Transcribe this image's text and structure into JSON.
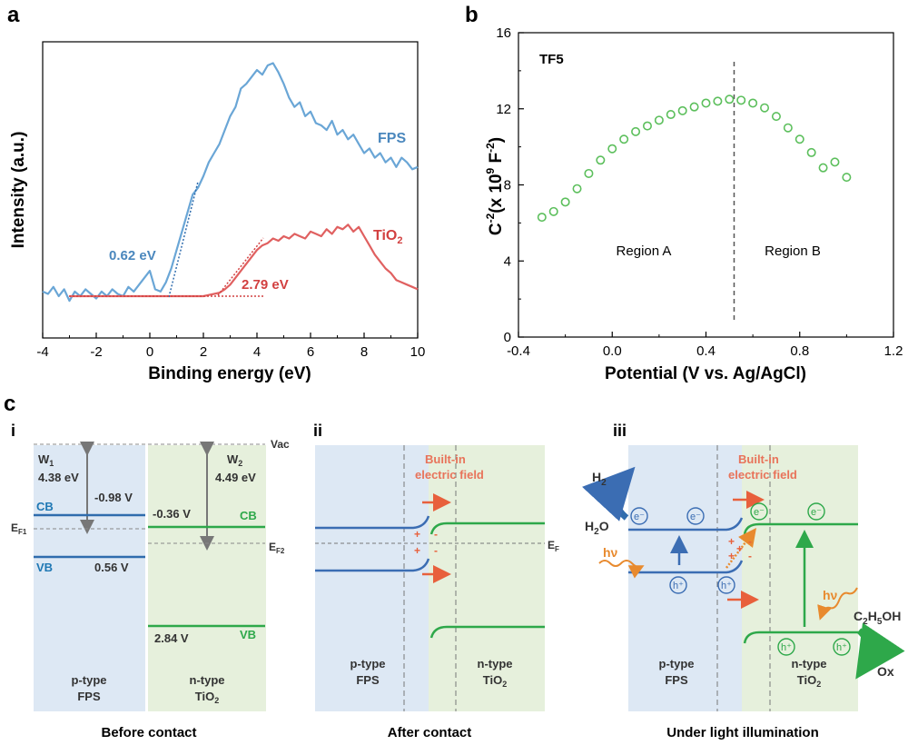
{
  "panels": {
    "a": "a",
    "b": "b",
    "c": "c"
  },
  "chart_data": [
    {
      "panel": "a",
      "type": "line",
      "xlabel": "Binding energy (eV)",
      "ylabel": "Intensity (a.u.)",
      "xlim": [
        -4,
        10
      ],
      "xticks": [
        -4,
        -2,
        0,
        2,
        4,
        6,
        8,
        10
      ],
      "yticks": [],
      "series": [
        {
          "name": "FPS",
          "color": "#6aa6d6",
          "x": [
            -4,
            -3.8,
            -3.6,
            -3.4,
            -3.2,
            -3,
            -2.8,
            -2.6,
            -2.4,
            -2.2,
            -2,
            -1.8,
            -1.6,
            -1.4,
            -1.2,
            -1,
            -0.8,
            -0.6,
            -0.4,
            -0.2,
            0,
            0.2,
            0.4,
            0.6,
            0.8,
            1,
            1.2,
            1.4,
            1.6,
            1.8,
            2,
            2.2,
            2.4,
            2.6,
            2.8,
            3,
            3.2,
            3.4,
            3.6,
            3.8,
            4,
            4.2,
            4.4,
            4.6,
            4.8,
            5,
            5.2,
            5.4,
            5.6,
            5.8,
            6,
            6.2,
            6.4,
            6.6,
            6.8,
            7,
            7.2,
            7.4,
            7.6,
            7.8,
            8,
            8.2,
            8.4,
            8.6,
            8.8,
            9,
            9.2,
            9.4,
            9.6,
            9.8,
            10
          ],
          "y": [
            0.02,
            0.01,
            0.04,
            0.0,
            0.03,
            -0.02,
            0.02,
            0.0,
            0.03,
            0.01,
            -0.01,
            0.02,
            0.0,
            0.03,
            0.01,
            0.0,
            0.04,
            0.02,
            0.05,
            0.08,
            0.11,
            0.03,
            0.02,
            0.06,
            0.12,
            0.2,
            0.28,
            0.36,
            0.44,
            0.47,
            0.52,
            0.58,
            0.62,
            0.66,
            0.72,
            0.78,
            0.82,
            0.9,
            0.92,
            0.95,
            0.98,
            0.96,
            1.0,
            1.01,
            0.97,
            0.92,
            0.86,
            0.82,
            0.84,
            0.78,
            0.8,
            0.75,
            0.74,
            0.72,
            0.76,
            0.7,
            0.72,
            0.68,
            0.7,
            0.66,
            0.62,
            0.64,
            0.6,
            0.62,
            0.58,
            0.6,
            0.56,
            0.6,
            0.58,
            0.55,
            0.56
          ],
          "label": "FPS"
        },
        {
          "name": "TiO2",
          "color": "#e06060",
          "x": [
            -3,
            -2.5,
            -2,
            -1.5,
            -1,
            -0.5,
            0,
            0.5,
            1,
            1.5,
            2,
            2.2,
            2.4,
            2.6,
            2.8,
            3,
            3.2,
            3.4,
            3.6,
            3.8,
            4,
            4.2,
            4.4,
            4.6,
            4.8,
            5,
            5.2,
            5.4,
            5.6,
            5.8,
            6,
            6.2,
            6.4,
            6.6,
            6.8,
            7,
            7.2,
            7.4,
            7.6,
            7.8,
            8,
            8.2,
            8.4,
            8.6,
            8.8,
            9,
            9.2,
            9.4,
            9.6,
            9.8,
            10
          ],
          "y": [
            0.0,
            0.0,
            0.0,
            0.0,
            0.0,
            0.0,
            0.0,
            0.0,
            0.0,
            0.0,
            0.0,
            0.005,
            0.01,
            0.015,
            0.03,
            0.05,
            0.08,
            0.11,
            0.14,
            0.17,
            0.2,
            0.22,
            0.23,
            0.25,
            0.24,
            0.26,
            0.25,
            0.27,
            0.26,
            0.25,
            0.28,
            0.27,
            0.26,
            0.29,
            0.27,
            0.3,
            0.29,
            0.31,
            0.28,
            0.3,
            0.26,
            0.22,
            0.18,
            0.15,
            0.12,
            0.1,
            0.07,
            0.06,
            0.05,
            0.04,
            0.03
          ],
          "label": "TiO2"
        }
      ],
      "annotations": [
        {
          "text": "0.62 eV",
          "color": "#4a87bd"
        },
        {
          "text": "2.79 eV",
          "color": "#d24040"
        },
        {
          "text": "FPS",
          "color": "#4a87bd"
        },
        {
          "text": "TiO",
          "sub": "2",
          "color": "#d24040"
        }
      ]
    },
    {
      "panel": "b",
      "type": "scatter",
      "title": "TF5",
      "xlabel": "Potential (V vs. Ag/AgCl)",
      "ylabel_main": "C",
      "ylabel_sup1": "-2",
      "ylabel_rest": "(x 10",
      "ylabel_sup2": "9",
      "ylabel_tail": " F",
      "ylabel_sup3": "-2",
      "ylabel_end": ")",
      "xlim": [
        -0.4,
        1.2
      ],
      "ylim": [
        0,
        16
      ],
      "xticks": [
        -0.4,
        0.0,
        0.4,
        0.8,
        1.2
      ],
      "xtick_labels": [
        "-0.4",
        "0.0",
        "0.4",
        "0.8",
        "1.2"
      ],
      "yticks": [
        0,
        4,
        8,
        12,
        16
      ],
      "marker_color": "#5cbf5c",
      "x": [
        -0.3,
        -0.25,
        -0.2,
        -0.15,
        -0.1,
        -0.05,
        0.0,
        0.05,
        0.1,
        0.15,
        0.2,
        0.25,
        0.3,
        0.35,
        0.4,
        0.45,
        0.5,
        0.55,
        0.6,
        0.65,
        0.7,
        0.75,
        0.8,
        0.85,
        0.9,
        0.95,
        1.0
      ],
      "y": [
        6.3,
        6.6,
        7.1,
        7.8,
        8.6,
        9.3,
        9.9,
        10.4,
        10.8,
        11.1,
        11.4,
        11.7,
        11.9,
        12.1,
        12.3,
        12.4,
        12.5,
        12.45,
        12.3,
        12.05,
        11.6,
        11.0,
        10.4,
        9.7,
        8.9,
        9.2,
        8.4
      ],
      "divider_x": 0.52,
      "region_labels": [
        "Region A",
        "Region B"
      ]
    }
  ],
  "diagram_c": {
    "sub_i": {
      "label": "i",
      "caption": "Before contact",
      "vac": "Vac",
      "w1": "W",
      "w1_sub": "1",
      "w1_val": "4.38 eV",
      "w2": "W",
      "w2_sub": "2",
      "w2_val": "4.49 eV",
      "cb_left": "CB",
      "cb_left_v": "-0.98 V",
      "cb_right": "CB",
      "cb_right_v": "-0.36 V",
      "vb_left": "VB",
      "vb_left_v": "0.56 V",
      "vb_right": "VB",
      "vb_right_v": "2.84 V",
      "ef1": "E",
      "ef1_sub": "F1",
      "ef2": "E",
      "ef2_sub": "F2",
      "left_type": "p-type",
      "left_mat": "FPS",
      "right_type": "n-type",
      "right_mat": "TiO",
      "right_mat_sub": "2"
    },
    "sub_ii": {
      "label": "ii",
      "caption": "After contact",
      "field": [
        "Built-in",
        "electric field"
      ],
      "ef": "E",
      "ef_sub": "F",
      "left_type": "p-type",
      "left_mat": "FPS",
      "right_type": "n-type",
      "right_mat": "TiO",
      "right_mat_sub": "2"
    },
    "sub_iii": {
      "label": "iii",
      "caption": "Under light illumination",
      "field": [
        "Built-in",
        "electric field"
      ],
      "h2": "H",
      "h2_sub": "2",
      "h2o": "H",
      "h2o_sub": "2",
      "h2o_tail": "O",
      "hv": "hν",
      "ethanol": "C",
      "ethanol_s1": "2",
      "ethanol_m": "H",
      "ethanol_s2": "5",
      "ethanol_t": "OH",
      "ox": "Ox",
      "electron": "e⁻",
      "hole": "h⁺",
      "left_type": "p-type",
      "left_mat": "FPS",
      "right_type": "n-type",
      "right_mat": "TiO",
      "right_mat_sub": "2"
    },
    "colors": {
      "blue_bg": "#dde8f4",
      "green_bg": "#e6f0dc",
      "blue_band": "#2f6cad",
      "green_band": "#2ea84a",
      "cb_label_blue": "#1f78b4",
      "vb_label_green": "#2ea84a",
      "field_text": "#e8735a",
      "arrow_red": "#e8603c",
      "hv_orange": "#e88a2e"
    }
  }
}
